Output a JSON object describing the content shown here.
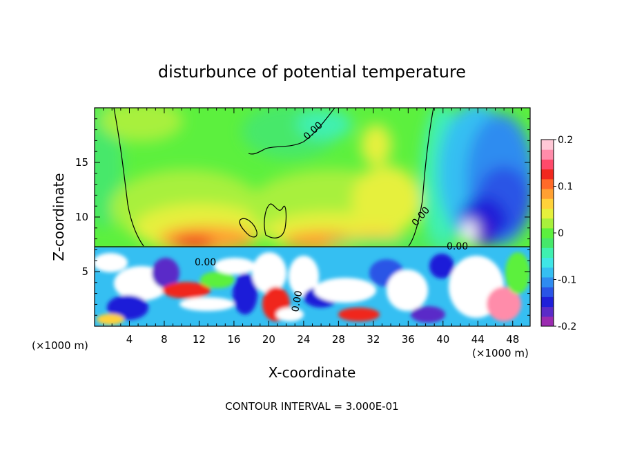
{
  "chart_data": {
    "type": "heatmap",
    "title": "disturbunce of potential temperature",
    "xlabel": "X-coordinate",
    "ylabel": "Z-coordinate",
    "x_unit": "(×1000 m)",
    "x_unit_colorbar_side": "(×1000 m)",
    "xlim": [
      0,
      50
    ],
    "ylim": [
      0,
      20
    ],
    "x_ticks": [
      4,
      8,
      12,
      16,
      20,
      24,
      28,
      32,
      36,
      40,
      44,
      48
    ],
    "y_ticks": [
      5,
      10,
      15
    ],
    "colorbar": {
      "range": [
        -0.2,
        0.2
      ],
      "ticks": [
        {
          "value": 0.2,
          "label": "0.2"
        },
        {
          "value": 0.1,
          "label": "0.1"
        },
        {
          "value": 0,
          "label": "0"
        },
        {
          "value": -0.1,
          "label": "-0.1"
        },
        {
          "value": -0.2,
          "label": "-0.2"
        }
      ],
      "colors": [
        "#9b2bb0",
        "#5a2bc8",
        "#1f1fd8",
        "#2a55e6",
        "#2f8cf0",
        "#35bff2",
        "#3fe6e6",
        "#3ff0b0",
        "#46e86a",
        "#5cf03e",
        "#a8f03c",
        "#e6f03c",
        "#ffd23a",
        "#ffa032",
        "#ff6a28",
        "#f0281e",
        "#ff4a6a",
        "#ff8caa",
        "#ffc8d6"
      ]
    },
    "contour_label": "0.00",
    "annotation": "CONTOUR INTERVAL = 3.000E-01"
  }
}
